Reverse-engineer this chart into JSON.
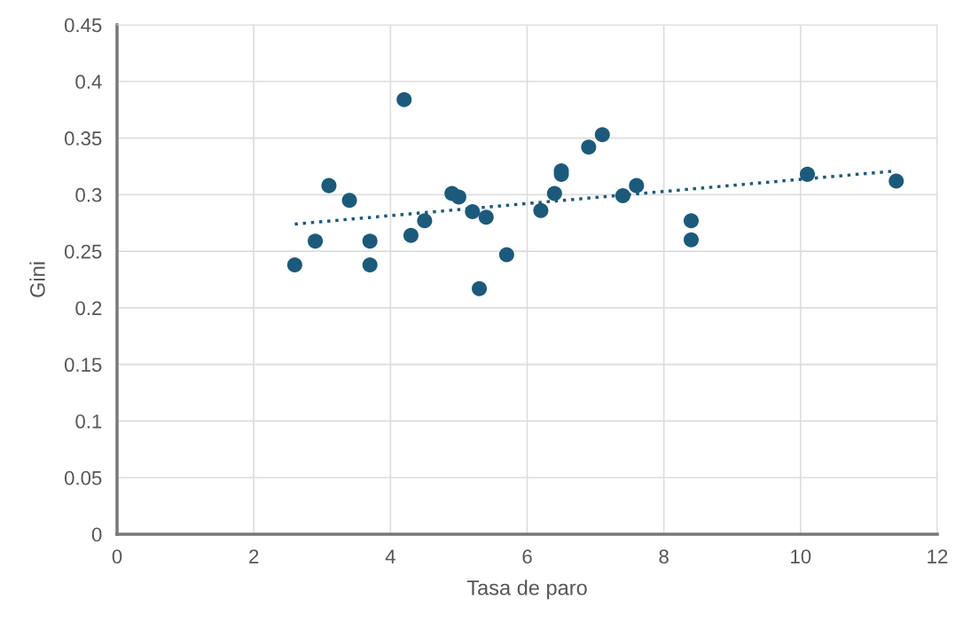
{
  "chart_data": {
    "type": "scatter",
    "xlabel": "Tasa de paro",
    "ylabel": "Gini",
    "xlim": [
      0,
      12
    ],
    "xticks": [
      0,
      2,
      4,
      6,
      8,
      10,
      12
    ],
    "ylim": [
      0,
      0.45
    ],
    "yticks": [
      0,
      0.05,
      0.1,
      0.15,
      0.2,
      0.25,
      0.3,
      0.35,
      0.4,
      0.45
    ],
    "grid": true,
    "legend": false,
    "series": [
      {
        "color": "#1c5a7c",
        "marker": "circle",
        "x": [
          2.6,
          2.9,
          3.1,
          3.4,
          3.7,
          3.7,
          4.2,
          4.3,
          4.5,
          4.9,
          5.0,
          5.2,
          5.3,
          5.4,
          5.7,
          6.2,
          6.4,
          6.5,
          6.5,
          6.9,
          7.1,
          7.4,
          7.6,
          8.4,
          8.4,
          10.1,
          11.4
        ],
        "values": [
          0.238,
          0.259,
          0.308,
          0.295,
          0.259,
          0.238,
          0.384,
          0.264,
          0.277,
          0.301,
          0.298,
          0.285,
          0.217,
          0.28,
          0.247,
          0.286,
          0.301,
          0.321,
          0.318,
          0.342,
          0.353,
          0.299,
          0.308,
          0.277,
          0.26,
          0.318,
          0.312
        ]
      },
      {
        "type": "line",
        "color": "#1c5a7c",
        "line_style": "dotted",
        "marker": "none",
        "x": [
          2.6,
          11.4
        ],
        "values": [
          0.274,
          0.321
        ]
      }
    ]
  }
}
